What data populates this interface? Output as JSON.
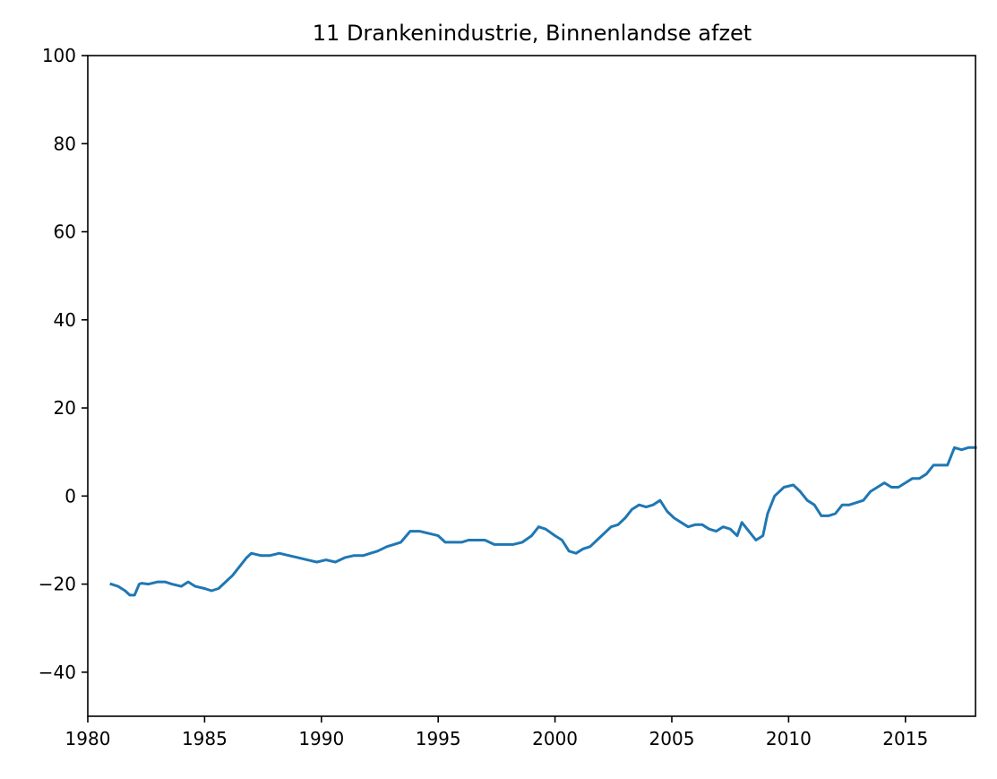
{
  "chart_data": {
    "type": "line",
    "title": "11 Drankenindustrie, Binnenlandse afzet",
    "xlabel": "",
    "ylabel": "",
    "xlim": [
      1980,
      2018
    ],
    "ylim": [
      -50,
      100
    ],
    "x_ticks": [
      1980,
      1985,
      1990,
      1995,
      2000,
      2005,
      2010,
      2015
    ],
    "y_ticks": [
      -40,
      -20,
      0,
      20,
      40,
      60,
      80,
      100
    ],
    "x_tick_labels": [
      "1980",
      "1985",
      "1990",
      "1995",
      "2000",
      "2005",
      "2010",
      "2015"
    ],
    "y_tick_labels": [
      "−40",
      "−20",
      "0",
      "20",
      "40",
      "60",
      "80",
      "100"
    ],
    "grid": false,
    "legend": "none",
    "series": [
      {
        "color": "#1f77b4",
        "x": [
          1981.0,
          1981.3,
          1981.6,
          1981.8,
          1982.0,
          1982.2,
          1982.3,
          1982.6,
          1983.0,
          1983.3,
          1983.6,
          1984.0,
          1984.3,
          1984.6,
          1985.0,
          1985.3,
          1985.6,
          1985.9,
          1986.2,
          1986.5,
          1986.8,
          1987.0,
          1987.4,
          1987.8,
          1988.2,
          1988.6,
          1989.0,
          1989.4,
          1989.8,
          1990.2,
          1990.6,
          1991.0,
          1991.4,
          1991.8,
          1992.1,
          1992.4,
          1992.8,
          1993.1,
          1993.4,
          1993.8,
          1994.2,
          1994.6,
          1995.0,
          1995.3,
          1995.6,
          1996.0,
          1996.3,
          1996.6,
          1997.0,
          1997.4,
          1997.8,
          1998.2,
          1998.6,
          1999.0,
          1999.3,
          1999.6,
          2000.0,
          2000.3,
          2000.6,
          2000.9,
          2001.2,
          2001.5,
          2001.8,
          2002.1,
          2002.4,
          2002.7,
          2003.0,
          2003.3,
          2003.6,
          2003.9,
          2004.2,
          2004.5,
          2004.8,
          2005.1,
          2005.4,
          2005.7,
          2006.0,
          2006.3,
          2006.6,
          2006.9,
          2007.2,
          2007.5,
          2007.8,
          2008.0,
          2008.3,
          2008.6,
          2008.9,
          2009.1,
          2009.4,
          2009.8,
          2010.2,
          2010.5,
          2010.8,
          2011.1,
          2011.4,
          2011.7,
          2012.0,
          2012.3,
          2012.6,
          2012.9,
          2013.2,
          2013.5,
          2013.8,
          2014.1,
          2014.4,
          2014.7,
          2015.0,
          2015.3,
          2015.6,
          2015.9,
          2016.2,
          2016.5,
          2016.8,
          2017.1,
          2017.4,
          2017.7,
          2018.0
        ],
        "y": [
          -20,
          -20.5,
          -21.5,
          -22.5,
          -22.5,
          -20,
          -19.8,
          -20,
          -19.5,
          -19.5,
          -20,
          -20.5,
          -19.5,
          -20.5,
          -21,
          -21.5,
          -21,
          -19.5,
          -18,
          -16,
          -14,
          -13,
          -13.5,
          -13.5,
          -13,
          -13.5,
          -14,
          -14.5,
          -15,
          -14.5,
          -15,
          -14,
          -13.5,
          -13.5,
          -13,
          -12.5,
          -11.5,
          -11,
          -10.5,
          -8,
          -8,
          -8.5,
          -9,
          -10.5,
          -10.5,
          -10.5,
          -10,
          -10,
          -10,
          -11,
          -11,
          -11,
          -10.5,
          -9,
          -7,
          -7.5,
          -9,
          -10,
          -12.5,
          -13,
          -12,
          -11.5,
          -10,
          -8.5,
          -7,
          -6.5,
          -5,
          -3,
          -2,
          -2.5,
          -2,
          -1,
          -3.5,
          -5,
          -6,
          -7,
          -6.5,
          -6.5,
          -7.5,
          -8,
          -7,
          -7.5,
          -9,
          -6,
          -8,
          -10,
          -9,
          -4,
          0,
          2,
          2.5,
          1,
          -1,
          -2,
          -4.5,
          -4.5,
          -4,
          -2,
          -2,
          -1.5,
          -1,
          1,
          2,
          3,
          2,
          2,
          3,
          4,
          4,
          5,
          7,
          7,
          7,
          11,
          10.5,
          11,
          11
        ]
      }
    ]
  }
}
